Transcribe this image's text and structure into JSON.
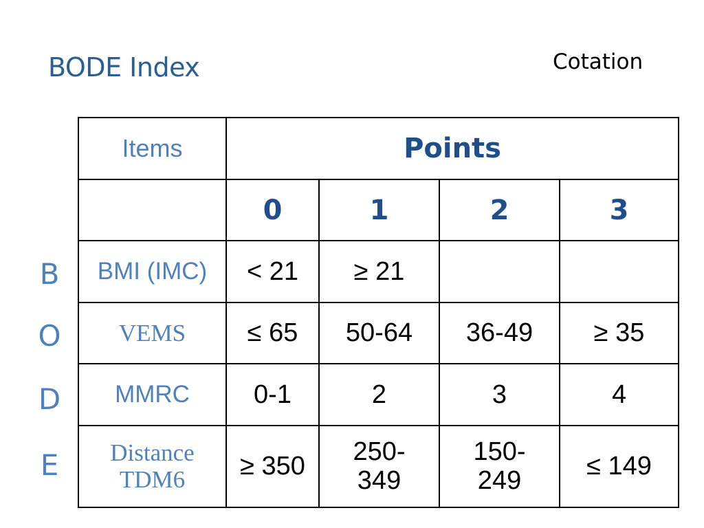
{
  "slide": {
    "title": "BODE Index",
    "subtitle": "Cotation"
  },
  "side_letters": [
    "B",
    "O",
    "D",
    "E"
  ],
  "table": {
    "items_header": "Items",
    "points_header": "Points",
    "point_columns": [
      "0",
      "1",
      "2",
      "3"
    ],
    "rows": [
      {
        "item": "BMI (IMC)",
        "values": [
          "< 21",
          "≥ 21",
          "",
          ""
        ]
      },
      {
        "item": "VEMS",
        "values": [
          "≤ 65",
          "50-64",
          "36-49",
          "≥ 35"
        ]
      },
      {
        "item": "MMRC",
        "values": [
          "0-1",
          "2",
          "3",
          "4"
        ]
      },
      {
        "item_line1": "Distance",
        "item_line2": "TDM6",
        "values": [
          "≥ 350",
          "250-\n349",
          "150-\n249",
          "≤ 149"
        ],
        "values_split": [
          [
            "≥ 350"
          ],
          [
            "250-",
            "349"
          ],
          [
            "150-",
            "249"
          ],
          [
            "≤ 149"
          ]
        ]
      }
    ]
  },
  "colors": {
    "title": "#2a5f94",
    "item_text": "#4f81bd",
    "points_text": "#1f4e8a",
    "side_letters": "#4f81bd"
  }
}
